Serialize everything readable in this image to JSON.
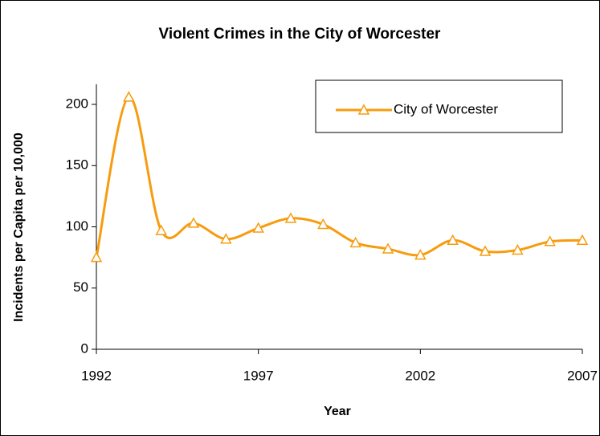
{
  "chart_data": {
    "type": "line",
    "title": "Violent Crimes in the City of Worcester",
    "x_label": "Year",
    "y_label": "Incidents per Capita per 10,000",
    "x": [
      1992,
      1993,
      1994,
      1995,
      1996,
      1997,
      1998,
      1999,
      2000,
      2001,
      2002,
      2003,
      2004,
      2005,
      2006,
      2007
    ],
    "series": [
      {
        "name": "City of Worcester",
        "color": "#f79c0e",
        "values": [
          75,
          206,
          97,
          103,
          90,
          99,
          107,
          102,
          87,
          82,
          77,
          89,
          80,
          81,
          88,
          89
        ]
      }
    ],
    "xlim": [
      1992,
      2007
    ],
    "xticks": [
      1992,
      1997,
      2002,
      2007
    ],
    "ylim": [
      0,
      200
    ],
    "yticks": [
      0,
      50,
      100,
      150,
      200
    ],
    "smooth": true,
    "marker": "triangle",
    "legend": "upper right"
  }
}
